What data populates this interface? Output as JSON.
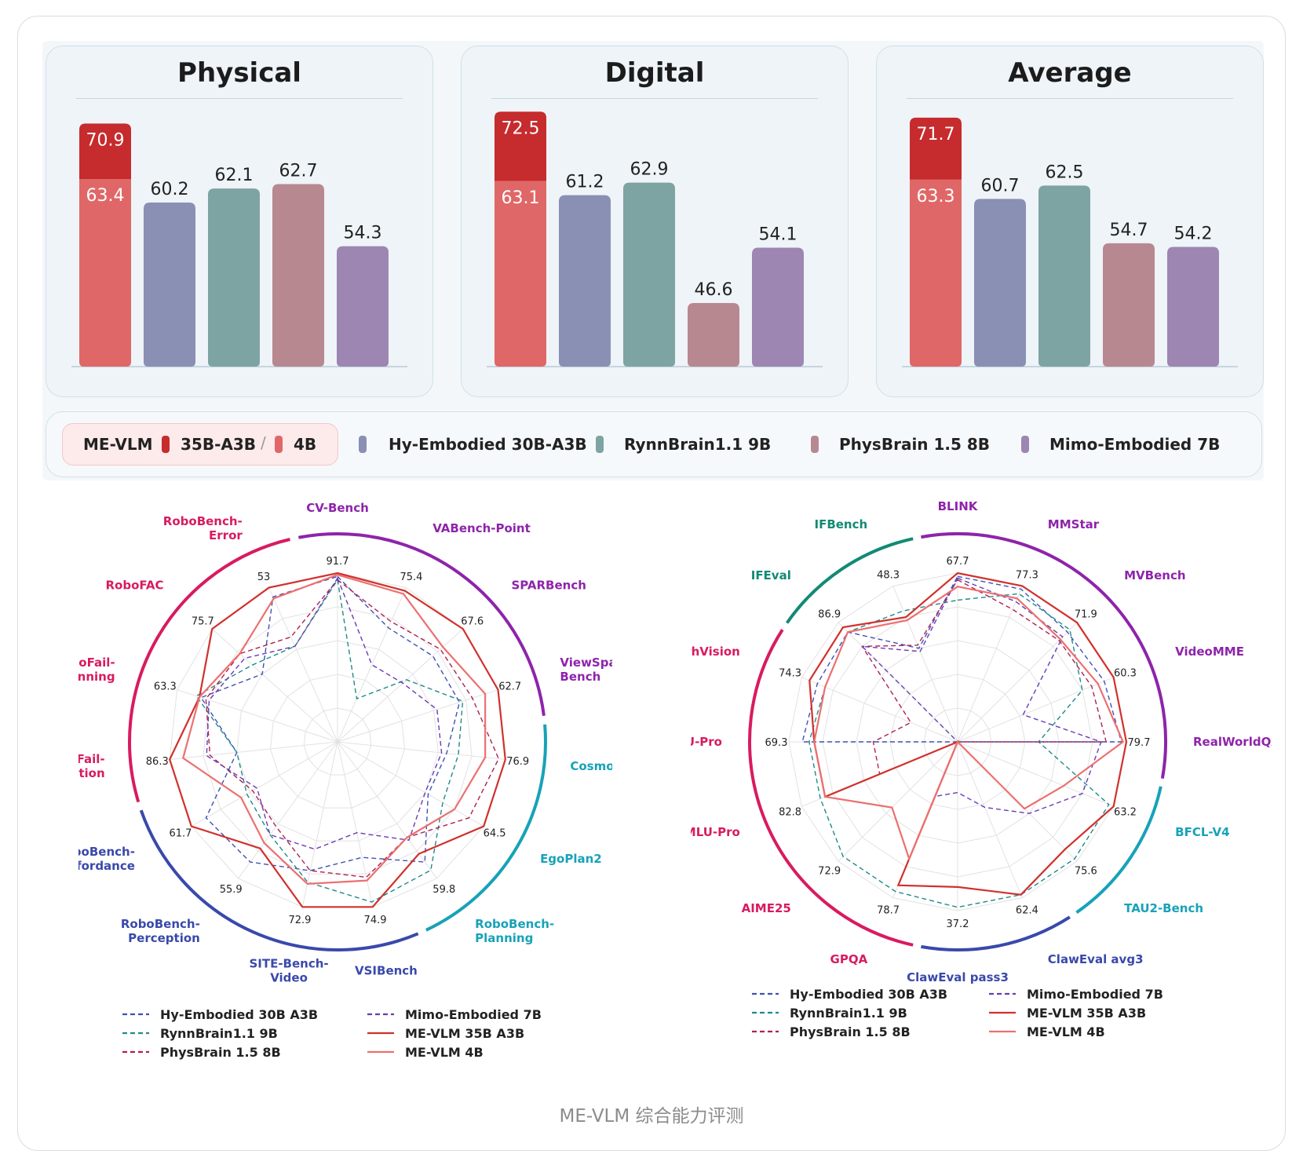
{
  "caption": "ME-VLM 综合能力评测",
  "colors": {
    "me_35b": "#c62b2d",
    "me_4b": "#e06767",
    "hy": "#8a8fb4",
    "rynn": "#7ea3a3",
    "phys": "#b88890",
    "mimo": "#9d86b2",
    "hy_line": "#3f51b5",
    "rynn_line": "#1f8a8a",
    "phys_line": "#b02050",
    "mimo_line": "#6a3bb5",
    "me35_line": "#d0312d",
    "me4_line": "#ec7070"
  },
  "legend": {
    "me_label": "ME-VLM",
    "me_big": "35B-A3B",
    "slash": "/",
    "me_small": "4B",
    "items": [
      "Hy-Embodied 30B-A3B",
      "RynnBrain1.1 9B",
      "PhysBrain 1.5 8B",
      "Mimo-Embodied 7B"
    ]
  },
  "radar_legend_left": [
    "Hy-Embodied 30B A3B",
    "RynnBrain1.1 9B",
    "PhysBrain 1.5 8B",
    "Mimo-Embodied 7B",
    "ME-VLM 35B A3B",
    "ME-VLM 4B"
  ],
  "radar_legend_right": [
    "Hy-Embodied 30B A3B",
    "RynnBrain1.1 9B",
    "PhysBrain 1.5 8B",
    "Mimo-Embodied 7B",
    "ME-VLM 35B A3B",
    "ME-VLM 4B"
  ],
  "chart_data": [
    {
      "type": "bar",
      "title": "Physical",
      "categories": [
        "ME-VLM",
        "Hy-Embodied 30B-A3B",
        "RynnBrain1.1 9B",
        "PhysBrain 1.5 8B",
        "Mimo-Embodied 7B"
      ],
      "values": [
        63.4,
        60.2,
        62.1,
        62.7,
        54.3
      ],
      "top_value": 70.9,
      "ylim": [
        38,
        72
      ]
    },
    {
      "type": "bar",
      "title": "Digital",
      "categories": [
        "ME-VLM",
        "Hy-Embodied 30B-A3B",
        "RynnBrain1.1 9B",
        "PhysBrain 1.5 8B",
        "Mimo-Embodied 7B"
      ],
      "values": [
        63.1,
        61.2,
        62.9,
        46.6,
        54.1
      ],
      "top_value": 72.5,
      "ylim": [
        38,
        72
      ]
    },
    {
      "type": "bar",
      "title": "Average",
      "categories": [
        "ME-VLM",
        "Hy-Embodied 30B-A3B",
        "RynnBrain1.1 9B",
        "PhysBrain 1.5 8B",
        "Mimo-Embodied 7B"
      ],
      "values": [
        63.3,
        60.7,
        62.5,
        54.7,
        54.2
      ],
      "top_value": 71.7,
      "ylim": [
        38,
        72
      ]
    },
    {
      "type": "radar",
      "axes": [
        {
          "label": "CV-Bench",
          "max": "91.7",
          "group": "purple"
        },
        {
          "label": "VABench-Point",
          "max": "75.4",
          "group": "purple"
        },
        {
          "label": "SPARBench",
          "max": "67.6",
          "group": "purple"
        },
        {
          "label": "ViewSpatial-\nBench",
          "max": "62.7",
          "group": "purple"
        },
        {
          "label": "Cosmos",
          "max": "76.9",
          "group": "teal"
        },
        {
          "label": "EgoPlan2",
          "max": "64.5",
          "group": "teal"
        },
        {
          "label": "RoboBench-\nPlanning",
          "max": "59.8",
          "group": "teal"
        },
        {
          "label": "VSIBench",
          "max": "74.9",
          "group": "navy"
        },
        {
          "label": "SITE-Bench-\nVideo",
          "max": "72.9",
          "group": "navy"
        },
        {
          "label": "RoboBench-\nPerception",
          "max": "55.9",
          "group": "navy"
        },
        {
          "label": "RoboBench-\nAffordance",
          "max": "61.7",
          "group": "navy"
        },
        {
          "label": "RoboFail-\nExecution",
          "max": "86.3",
          "group": "pink"
        },
        {
          "label": "RoboFail-\nPlanning",
          "max": "63.3",
          "group": "pink"
        },
        {
          "label": "RoboFAC",
          "max": "75.7",
          "group": "pink"
        },
        {
          "label": "RoboBench-\nError",
          "max": "53",
          "group": "pink"
        }
      ],
      "series": [
        {
          "name": "Hy-Embodied 30B A3B",
          "style": "dashed",
          "values": [
            0.98,
            0.74,
            0.76,
            0.76,
            0.65,
            0.62,
            0.88,
            0.7,
            0.78,
            0.88,
            0.9,
            0.6,
            0.85,
            0.6,
            0.94
          ]
        },
        {
          "name": "RynnBrain1.1 9B",
          "style": "dashed",
          "values": [
            0.96,
            0.28,
            0.55,
            0.78,
            0.72,
            0.72,
            0.94,
            0.97,
            0.85,
            0.68,
            0.62,
            0.6,
            0.88,
            0.68,
            0.62
          ]
        },
        {
          "name": "PhysBrain 1.5 8B",
          "style": "dashed",
          "values": [
            0.96,
            0.78,
            0.82,
            0.84,
            0.96,
            0.9,
            0.7,
            0.82,
            0.78,
            0.62,
            0.58,
            0.76,
            0.82,
            0.78,
            0.68
          ]
        },
        {
          "name": "Mimo-Embodied 7B",
          "style": "dashed",
          "values": [
            0.97,
            0.5,
            0.52,
            0.62,
            0.62,
            0.6,
            0.72,
            0.55,
            0.65,
            0.68,
            0.55,
            0.78,
            0.8,
            0.74,
            0.62
          ]
        },
        {
          "name": "ME-VLM 35B A3B",
          "style": "solid",
          "values": [
            1.0,
            0.98,
            1.0,
            1.0,
            1.0,
            1.0,
            0.82,
            1.0,
            1.0,
            0.78,
            1.0,
            1.0,
            0.86,
            1.0,
            1.0
          ]
        },
        {
          "name": "ME-VLM 4B",
          "style": "solid",
          "values": [
            0.99,
            0.96,
            0.84,
            0.92,
            0.88,
            0.8,
            0.7,
            0.84,
            0.86,
            0.74,
            0.66,
            0.92,
            0.86,
            0.78,
            0.93
          ]
        }
      ]
    },
    {
      "type": "radar",
      "axes": [
        {
          "label": "BLINK",
          "max": "67.7",
          "group": "purple"
        },
        {
          "label": "MMStar",
          "max": "77.3",
          "group": "purple"
        },
        {
          "label": "MVBench",
          "max": "71.9",
          "group": "purple"
        },
        {
          "label": "VideoMME",
          "max": "60.3",
          "group": "purple"
        },
        {
          "label": "RealWorldQA",
          "max": "79.7",
          "group": "purple"
        },
        {
          "label": "BFCL-V4",
          "max": "63.2",
          "group": "teal"
        },
        {
          "label": "TAU2-Bench",
          "max": "75.6",
          "group": "teal"
        },
        {
          "label": "ClawEval avg3",
          "max": "62.4",
          "group": "navy"
        },
        {
          "label": "ClawEval pass3",
          "max": "37.2",
          "group": "navy"
        },
        {
          "label": "GPQA",
          "max": "78.7",
          "group": "pink"
        },
        {
          "label": "AIME25",
          "max": "72.9",
          "group": "pink"
        },
        {
          "label": "MMLU-Pro",
          "max": "82.8",
          "group": "pink"
        },
        {
          "label": "MMMU-Pro",
          "max": "69.3",
          "group": "pink"
        },
        {
          "label": "MathVision",
          "max": "74.3",
          "group": "pink"
        },
        {
          "label": "IFEval",
          "max": "86.9",
          "group": "green"
        },
        {
          "label": "IFBench",
          "max": "48.3",
          "group": "green"
        }
      ],
      "series": [
        {
          "name": "Hy-Embodied 30B A3B",
          "style": "dashed",
          "values": [
            0.98,
            0.98,
            0.92,
            0.94,
            0.97,
            0.0,
            0.0,
            0.0,
            0.0,
            0.0,
            0.0,
            0.0,
            0.92,
            0.9,
            0.92,
            0.6
          ]
        },
        {
          "name": "RynnBrain1.1 9B",
          "style": "dashed",
          "values": [
            0.84,
            0.95,
            0.94,
            0.8,
            0.48,
            0.97,
            0.98,
            0.98,
            0.98,
            0.96,
            0.96,
            0.88,
            0.88,
            0.85,
            0.92,
            0.84
          ]
        },
        {
          "name": "PhysBrain 1.5 8B",
          "style": "dashed",
          "values": [
            0.96,
            0.85,
            0.85,
            0.86,
            0.88,
            0.0,
            0.0,
            0.0,
            0.0,
            0.0,
            0.0,
            0.5,
            0.5,
            0.3,
            0.8,
            0.62
          ]
        },
        {
          "name": "Mimo-Embodied 7B",
          "style": "dashed",
          "values": [
            0.97,
            0.9,
            0.88,
            0.42,
            0.85,
            0.8,
            0.6,
            0.42,
            0.3,
            0.35,
            0.0,
            0.0,
            0.0,
            0.0,
            0.8,
            0.58
          ]
        },
        {
          "name": "ME-VLM 35B A3B",
          "style": "solid",
          "values": [
            1.0,
            1.0,
            1.0,
            1.0,
            1.0,
            1.0,
            0.9,
            0.98,
            0.86,
            0.92,
            0.0,
            0.85,
            0.85,
            0.95,
            0.96,
            0.8
          ]
        },
        {
          "name": "ME-VLM 4B",
          "style": "solid",
          "values": [
            0.92,
            0.92,
            0.86,
            0.9,
            0.98,
            0.68,
            0.56,
            0.0,
            0.0,
            0.75,
            0.55,
            0.85,
            0.85,
            0.85,
            0.92,
            0.78
          ]
        }
      ]
    }
  ]
}
